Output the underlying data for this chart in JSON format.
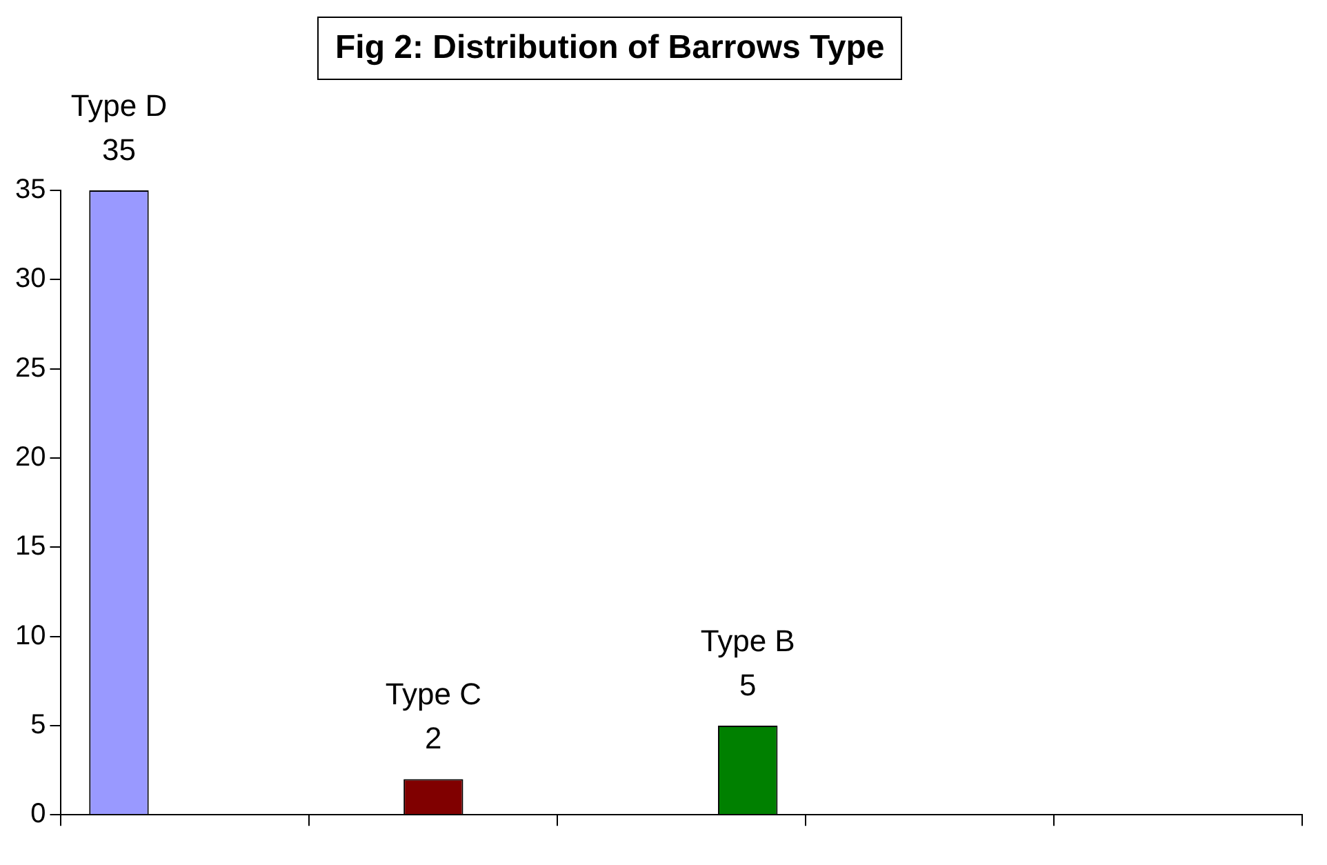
{
  "chart_data": {
    "type": "bar",
    "title": "Fig 2: Distribution of Barrows Type",
    "categories": [
      null,
      null,
      null,
      null,
      null
    ],
    "series": [
      {
        "name": "Type D",
        "color": "#9999ff",
        "values": [
          35,
          null,
          null,
          null,
          null
        ]
      },
      {
        "name": "Type C",
        "color": "#800000",
        "values": [
          null,
          2,
          null,
          null,
          null
        ]
      },
      {
        "name": "Type B",
        "color": "#008000",
        "values": [
          null,
          null,
          5,
          null,
          null
        ]
      }
    ],
    "ylim": [
      0,
      35
    ],
    "yticks": [
      0,
      5,
      10,
      15,
      20,
      25,
      30,
      35
    ],
    "data_labels": true
  }
}
